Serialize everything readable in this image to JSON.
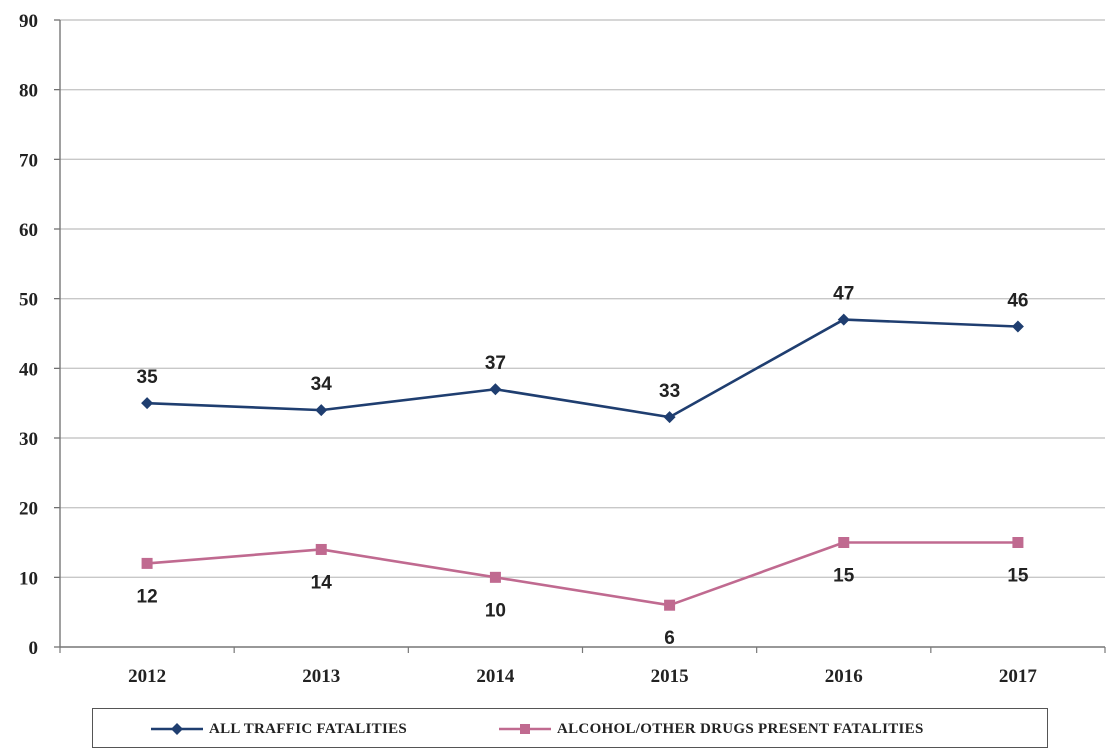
{
  "chart_data": {
    "type": "line",
    "categories": [
      "2012",
      "2013",
      "2014",
      "2015",
      "2016",
      "2017"
    ],
    "ylim": [
      0,
      90
    ],
    "yticks": [
      0,
      10,
      20,
      30,
      40,
      50,
      60,
      70,
      80,
      90
    ],
    "grid": true,
    "legend_position": "bottom",
    "series": [
      {
        "name": "ALL TRAFFIC FATALITIES",
        "values": [
          35,
          34,
          37,
          33,
          47,
          46
        ],
        "color": "#1f3e70",
        "marker": "diamond",
        "label_position": "above"
      },
      {
        "name": "ALCOHOL/OTHER DRUGS PRESENT FATALITIES",
        "values": [
          12,
          14,
          10,
          6,
          15,
          15
        ],
        "color": "#c06a90",
        "marker": "square",
        "label_position": "below"
      }
    ]
  }
}
